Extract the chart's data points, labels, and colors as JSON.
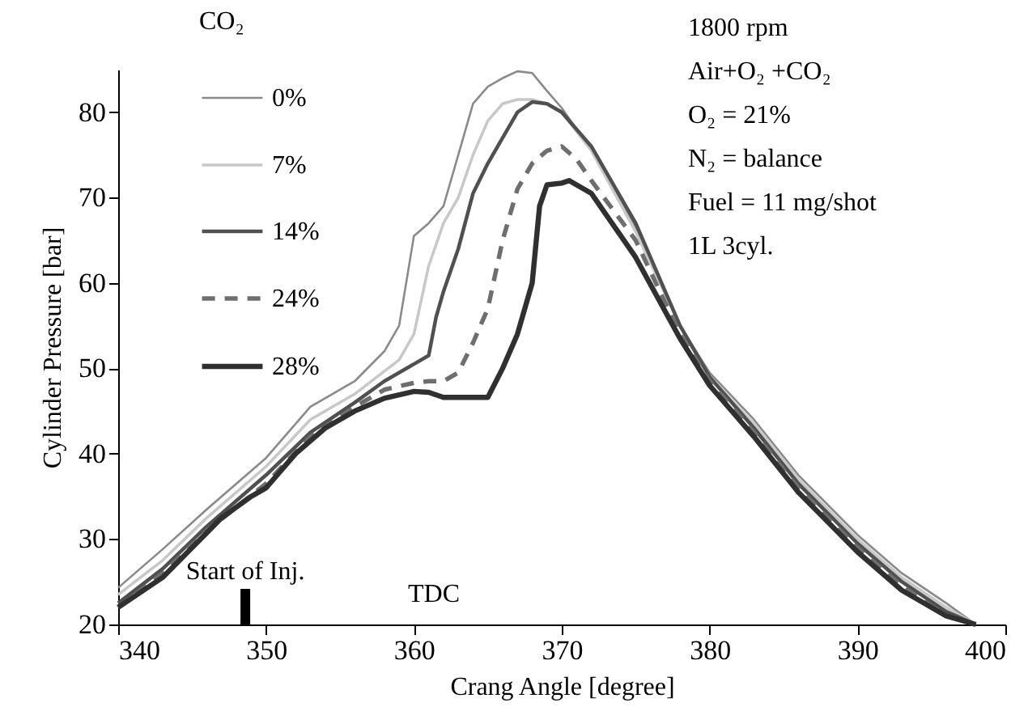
{
  "chart_data": {
    "type": "line",
    "xlabel": "Crang Angle [degree]",
    "ylabel": "Cylinder Pressure [bar]",
    "legend_title": "CO₂",
    "legend": "top left",
    "grid": false,
    "marker": "none",
    "xlim": [
      340,
      400
    ],
    "xticks": [
      340,
      350,
      360,
      370,
      380,
      390,
      400
    ],
    "ylim": [
      20,
      85
    ],
    "yticks": [
      20,
      30,
      40,
      50,
      60,
      70,
      80
    ],
    "series": [
      {
        "name": "0%",
        "color": "#8a8a8a",
        "line_style": "solid",
        "x": [
          340,
          343,
          346,
          350,
          353,
          356,
          358,
          359,
          360,
          361,
          362,
          363,
          364,
          365,
          366,
          367,
          368,
          369,
          370,
          372,
          375,
          378,
          380,
          383,
          386,
          390,
          393,
          396,
          398
        ],
        "values": [
          24.3,
          28.8,
          33.5,
          39.5,
          45.5,
          48.5,
          52,
          55,
          65.5,
          67,
          69,
          75,
          81,
          83,
          84,
          84.8,
          84.6,
          82.5,
          80.5,
          75.5,
          66.5,
          55,
          49.5,
          44,
          37.5,
          30.5,
          26,
          22.5,
          20
        ]
      },
      {
        "name": "7%",
        "color": "#c8c8c8",
        "line_style": "solid",
        "x": [
          340,
          343,
          346,
          350,
          353,
          356,
          359,
          360,
          361,
          362,
          363,
          364,
          365,
          366,
          367,
          368,
          369,
          370,
          372,
          375,
          378,
          380,
          383,
          386,
          390,
          393,
          396,
          398
        ],
        "values": [
          23.5,
          27.5,
          32.5,
          38.5,
          44,
          47,
          51,
          54,
          62,
          67,
          70,
          75,
          79,
          81,
          81.5,
          81.5,
          81,
          80,
          75.5,
          66,
          55,
          49,
          43.5,
          37,
          30,
          25.5,
          22,
          20
        ]
      },
      {
        "name": "14%",
        "color": "#505050",
        "line_style": "solid",
        "x": [
          340,
          343,
          346,
          350,
          353,
          356,
          358,
          360,
          361,
          361.5,
          362,
          363,
          364,
          365,
          366,
          367,
          368,
          369,
          370,
          372,
          375,
          378,
          380,
          383,
          386,
          390,
          393,
          396,
          398
        ],
        "values": [
          22.5,
          26.5,
          31.5,
          37.5,
          42.5,
          46,
          48.5,
          50.5,
          51.5,
          56,
          59,
          64,
          70.5,
          74,
          77,
          80,
          81.2,
          81,
          80,
          76,
          67,
          55,
          49,
          43,
          36.5,
          29.5,
          25,
          21.5,
          20
        ]
      },
      {
        "name": "24%",
        "color": "#6e6e6e",
        "line_style": "dashed",
        "x": [
          340,
          343,
          346,
          350,
          353,
          356,
          358,
          360,
          361,
          362,
          363,
          364,
          365,
          366,
          367,
          368,
          369,
          370,
          371,
          372,
          375,
          378,
          380,
          383,
          386,
          390,
          393,
          396,
          398
        ],
        "values": [
          22,
          26,
          31,
          36.5,
          42,
          45.5,
          47.5,
          48.3,
          48.5,
          48.5,
          49.5,
          53,
          57,
          65,
          71,
          74,
          75.5,
          76,
          74.5,
          72,
          65,
          54,
          48.5,
          42.5,
          36,
          29,
          24.5,
          21,
          20
        ]
      },
      {
        "name": "28%",
        "color": "#303030",
        "line_style": "solid",
        "x": [
          340,
          343,
          345,
          347,
          349,
          350,
          352,
          354,
          356,
          358,
          360,
          361,
          362,
          365,
          366,
          367,
          368,
          368.5,
          369,
          370,
          370.5,
          371.5,
          372,
          375,
          378,
          380,
          383,
          386,
          390,
          393,
          396,
          398
        ],
        "values": [
          22,
          25.5,
          29,
          32.5,
          35,
          36,
          40,
          43,
          45,
          46.5,
          47.3,
          47.2,
          46.6,
          46.6,
          50,
          54,
          60,
          69,
          71.5,
          71.7,
          72,
          71,
          70.5,
          63,
          53.5,
          48,
          42,
          35.5,
          28.5,
          24,
          21,
          20
        ]
      }
    ],
    "annotations": [
      "1800  rpm",
      "Air+O₂ +CO₂",
      "O₂  = 21%",
      "N₂  = balance",
      "Fuel = 11 mg/shot",
      "1L 3cyl.",
      "TDC"
    ],
    "ref_lines": [
      {
        "axis": "x",
        "value": 348.6,
        "label": "Start of Inj.",
        "color": "#000000"
      }
    ]
  }
}
